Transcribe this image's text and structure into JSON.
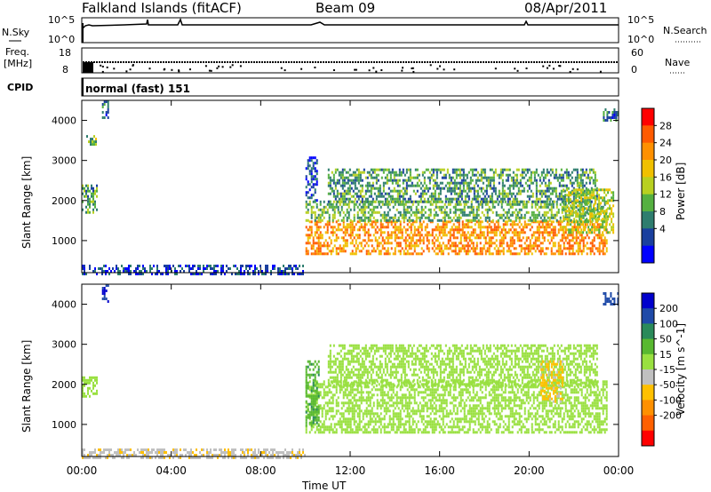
{
  "header": {
    "station": "Falkland Islands (fitACF)",
    "beam": "Beam 09",
    "date": "08/Apr/2011"
  },
  "panels": {
    "nsky": {
      "label": "N.Sky",
      "top_tick": "10^5",
      "bottom_tick": "10^0"
    },
    "nsearch": {
      "label": "N.Search",
      "top_tick": "10^5",
      "bottom_tick": "10^0"
    },
    "freq": {
      "label_line1": "Freq.",
      "label_line2": "[MHz]",
      "top_tick": "18",
      "bottom_tick": "8"
    },
    "nave": {
      "label": "Nave",
      "top_tick": "60",
      "bottom_tick": "0"
    },
    "cpid": {
      "label": "CPID",
      "value": "normal (fast) 151"
    }
  },
  "colorbars": {
    "power": {
      "title": "Power [dB]",
      "ticks": [
        "28",
        "24",
        "20",
        "16",
        "12",
        "8",
        "4"
      ],
      "colors": [
        "#0000ff",
        "#1a3f9e",
        "#2e7d6e",
        "#55b040",
        "#b8d020",
        "#f0c000",
        "#ff9000",
        "#ff5a00",
        "#ff0000"
      ]
    },
    "velocity": {
      "title": "Velocity [m s^-1]",
      "ticks": [
        "200",
        "100",
        "50",
        "15",
        "-15",
        "-50",
        "-100",
        "-200"
      ],
      "colors": [
        "#0000cc",
        "#1f4aa8",
        "#2a8a5a",
        "#58b830",
        "#99e040",
        "#c0c0c0",
        "#ffc000",
        "#ff9000",
        "#ff6000",
        "#ff0000"
      ]
    }
  },
  "chart_data": [
    {
      "type": "heatmap",
      "title": "Power",
      "ylabel": "Slant Range [km]",
      "ylim": [
        200,
        4500
      ],
      "yticks": [
        "1000",
        "2000",
        "3000",
        "4000"
      ],
      "xticks": [
        "00:00",
        "04:00",
        "08:00",
        "12:00",
        "16:00",
        "20:00",
        "00:00"
      ],
      "xlim_hours": [
        0,
        24
      ],
      "regions": [
        {
          "t_start": 0.0,
          "t_end": 0.7,
          "r_low": 1700,
          "r_high": 2400,
          "value_db": 12
        },
        {
          "t_start": 0.9,
          "t_end": 1.2,
          "r_low": 4100,
          "r_high": 4500,
          "value_db": 8
        },
        {
          "t_start": 0.2,
          "t_end": 0.6,
          "r_low": 3400,
          "r_high": 3700,
          "value_db": 16
        },
        {
          "t_start": 0.0,
          "t_end": 10.0,
          "r_low": 200,
          "r_high": 400,
          "value_db": 6
        },
        {
          "t_start": 10.0,
          "t_end": 23.5,
          "r_low": 700,
          "r_high": 1500,
          "value_db": 26
        },
        {
          "t_start": 10.0,
          "t_end": 23.5,
          "r_low": 1500,
          "r_high": 2000,
          "value_db": 14
        },
        {
          "t_start": 11.0,
          "t_end": 23.0,
          "r_low": 2000,
          "r_high": 2800,
          "value_db": 12
        },
        {
          "t_start": 10.0,
          "t_end": 10.5,
          "r_low": 2000,
          "r_high": 3100,
          "value_db": 6
        },
        {
          "t_start": 21.5,
          "t_end": 23.8,
          "r_low": 1200,
          "r_high": 2300,
          "value_db": 18
        },
        {
          "t_start": 23.3,
          "t_end": 24.0,
          "r_low": 4000,
          "r_high": 4300,
          "value_db": 8
        }
      ]
    },
    {
      "type": "heatmap",
      "title": "Velocity",
      "ylabel": "Slant Range [km]",
      "ylim": [
        200,
        4500
      ],
      "yticks": [
        "1000",
        "2000",
        "3000",
        "4000"
      ],
      "xticks": [
        "00:00",
        "04:00",
        "08:00",
        "12:00",
        "16:00",
        "20:00",
        "00:00"
      ],
      "xlabel": "Time UT",
      "xlim_hours": [
        0,
        24
      ],
      "regions": [
        {
          "t_start": 0.0,
          "t_end": 0.7,
          "r_low": 1700,
          "r_high": 2200,
          "value_ms": 0
        },
        {
          "t_start": 0.9,
          "t_end": 1.2,
          "r_low": 4100,
          "r_high": 4500,
          "value_ms": 200
        },
        {
          "t_start": 0.0,
          "t_end": 10.0,
          "r_low": 200,
          "r_high": 400,
          "value_ms": -40
        },
        {
          "t_start": 10.0,
          "t_end": 23.5,
          "r_low": 800,
          "r_high": 2100,
          "value_ms": 0
        },
        {
          "t_start": 10.0,
          "t_end": 10.6,
          "r_low": 1000,
          "r_high": 2600,
          "value_ms": 40
        },
        {
          "t_start": 11.0,
          "t_end": 23.0,
          "r_low": 2000,
          "r_high": 3000,
          "value_ms": 0
        },
        {
          "t_start": 20.5,
          "t_end": 21.5,
          "r_low": 1600,
          "r_high": 2600,
          "value_ms": -60
        },
        {
          "t_start": 23.3,
          "t_end": 24.0,
          "r_low": 4000,
          "r_high": 4300,
          "value_ms": 150
        }
      ]
    }
  ]
}
